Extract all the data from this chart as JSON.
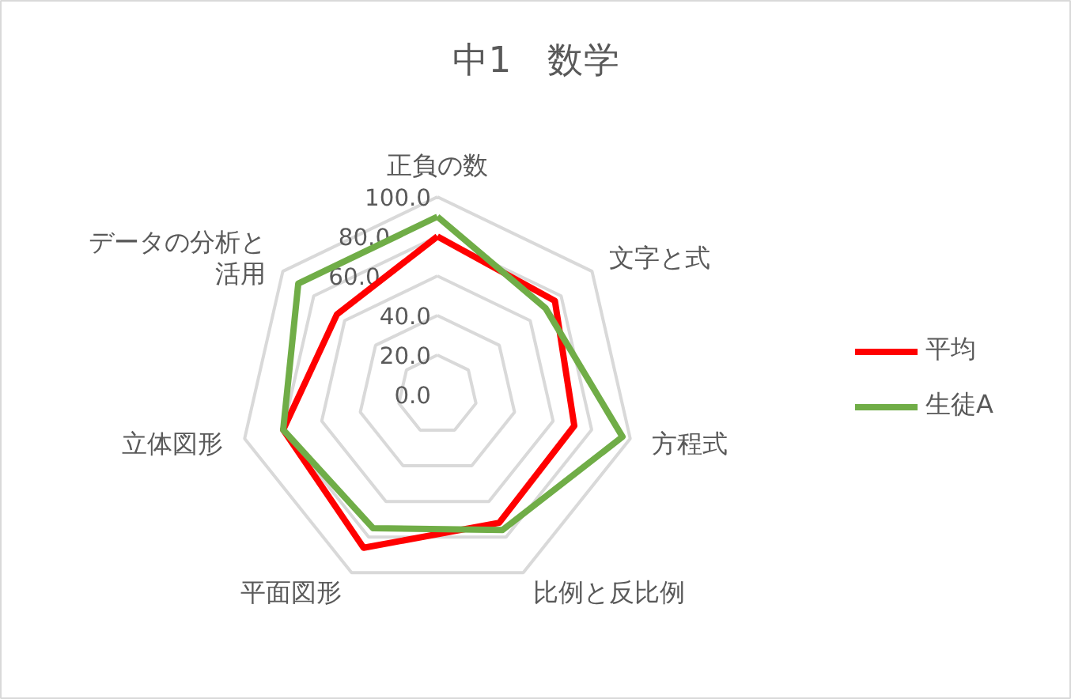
{
  "chart_data": {
    "type": "radar",
    "title": "中1　数学",
    "categories": [
      "正負の数",
      "文字と式",
      "方程式",
      "比例と反比例",
      "平面図形",
      "立体図形",
      "データの分析と活用"
    ],
    "series": [
      {
        "name": "平均",
        "color": "#ff0000",
        "values": [
          80,
          76,
          71,
          72,
          86,
          80,
          65
        ]
      },
      {
        "name": "生徒A",
        "color": "#70ad47",
        "values": [
          90,
          70,
          96,
          76,
          75,
          80,
          90
        ]
      }
    ],
    "ylim": [
      0,
      100
    ],
    "yticks": [
      {
        "value": 0,
        "label": "0.0"
      },
      {
        "value": 20,
        "label": "20.0"
      },
      {
        "value": 40,
        "label": "40.0"
      },
      {
        "value": 60,
        "label": "60.0"
      },
      {
        "value": 80,
        "label": "80.0"
      },
      {
        "value": 100,
        "label": "100.0"
      }
    ],
    "grid": true,
    "legend": "right",
    "marker": "none",
    "line_style": "solid"
  }
}
